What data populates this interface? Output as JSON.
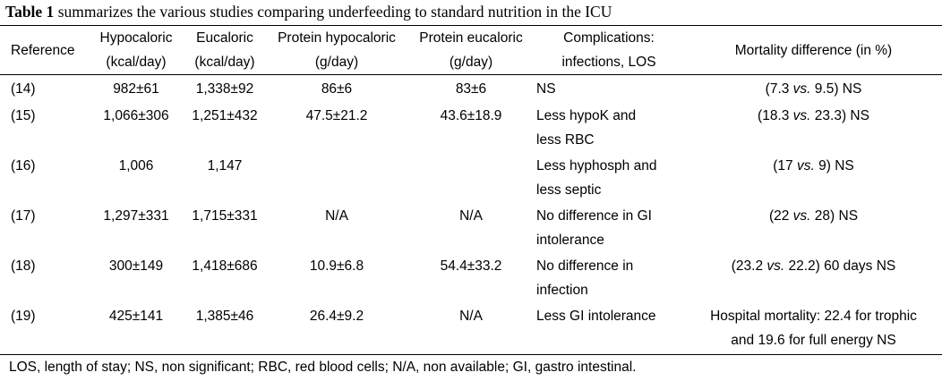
{
  "caption": {
    "label": "Table 1",
    "text": " summarizes the various studies comparing underfeeding to standard nutrition in the ICU"
  },
  "headers": [
    {
      "l1": "Reference",
      "l2": ""
    },
    {
      "l1": "Hypocaloric",
      "l2": "(kcal/day)"
    },
    {
      "l1": "Eucaloric",
      "l2": "(kcal/day)"
    },
    {
      "l1": "Protein hypocaloric",
      "l2": "(g/day)"
    },
    {
      "l1": "Protein eucaloric",
      "l2": "(g/day)"
    },
    {
      "l1": "Complications:",
      "l2": "infections, LOS"
    },
    {
      "l1": "Mortality difference (in %)",
      "l2": ""
    }
  ],
  "rows": [
    {
      "ref": "(14)",
      "hypo": "982±61",
      "euc": "1,338±92",
      "phypo": "86±6",
      "peuc": "83±6",
      "comp": [
        "NS",
        ""
      ],
      "mort": {
        "pre": "(7.3 ",
        "vs": "vs.",
        "post": " 9.5) NS",
        "l2": ""
      }
    },
    {
      "ref": "(15)",
      "hypo": "1,066±306",
      "euc": "1,251±432",
      "phypo": "47.5±21.2",
      "peuc": "43.6±18.9",
      "comp": [
        "Less hypoK and",
        "less RBC"
      ],
      "mort": {
        "pre": "(18.3 ",
        "vs": "vs.",
        "post": " 23.3) NS",
        "l2": ""
      }
    },
    {
      "ref": "(16)",
      "hypo": "1,006",
      "euc": "1,147",
      "phypo": "",
      "peuc": "",
      "comp": [
        "Less hyphosph and",
        "less septic"
      ],
      "mort": {
        "pre": "(17 ",
        "vs": "vs.",
        "post": " 9) NS",
        "l2": ""
      }
    },
    {
      "ref": "(17)",
      "hypo": "1,297±331",
      "euc": "1,715±331",
      "phypo": "N/A",
      "peuc": "N/A",
      "comp": [
        "No difference in GI",
        "intolerance"
      ],
      "mort": {
        "pre": "(22 ",
        "vs": "vs.",
        "post": " 28) NS",
        "l2": ""
      }
    },
    {
      "ref": "(18)",
      "hypo": "300±149",
      "euc": "1,418±686",
      "phypo": "10.9±6.8",
      "peuc": "54.4±33.2",
      "comp": [
        "No difference in",
        "infection"
      ],
      "mort": {
        "pre": "(23.2 ",
        "vs": "vs.",
        "post": " 22.2) 60 days NS",
        "l2": ""
      }
    },
    {
      "ref": "(19)",
      "hypo": "425±141",
      "euc": "1,385±46",
      "phypo": "26.4±9.2",
      "peuc": "N/A",
      "comp": [
        "Less GI intolerance",
        ""
      ],
      "mort": {
        "pre": "Hospital mortality: 22.4 for trophic",
        "vs": "",
        "post": "",
        "l2": "and 19.6 for full energy NS"
      }
    }
  ],
  "footnote": "LOS, length of stay; NS, non significant; RBC, red blood cells; N/A, non available; GI, gastro intestinal."
}
